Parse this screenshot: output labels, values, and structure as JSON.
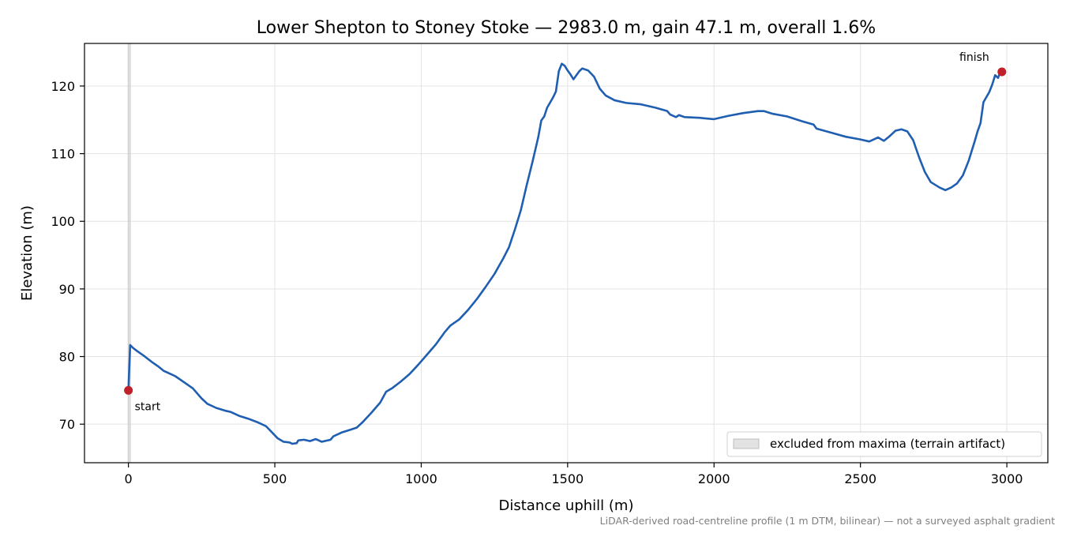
{
  "chart_data": {
    "type": "line",
    "title": "Lower Shepton to Stoney Stoke — 2983.0 m, gain 47.1 m, overall 1.6%",
    "xlabel": "Distance uphill (m)",
    "ylabel": "Elevation (m)",
    "xlim": [
      -150,
      3140
    ],
    "ylim": [
      64.3,
      126.3
    ],
    "xticks": [
      0,
      500,
      1000,
      1500,
      2000,
      2500,
      3000
    ],
    "yticks": [
      70,
      80,
      90,
      100,
      110,
      120
    ],
    "grid": true,
    "legend_position": "bottom-right",
    "legend": [
      {
        "label": "excluded from maxima (terrain artifact)",
        "style": "shaded-band"
      }
    ],
    "excluded_region": {
      "x_start": 0,
      "x_end": 6
    },
    "series": [
      {
        "color": "#1f5eb0",
        "points": [
          [
            0,
            75.0
          ],
          [
            6,
            81.7
          ],
          [
            15,
            81.3
          ],
          [
            30,
            80.8
          ],
          [
            50,
            80.2
          ],
          [
            80,
            79.2
          ],
          [
            100,
            78.6
          ],
          [
            120,
            77.9
          ],
          [
            140,
            77.5
          ],
          [
            160,
            77.1
          ],
          [
            190,
            76.2
          ],
          [
            220,
            75.3
          ],
          [
            250,
            73.8
          ],
          [
            270,
            73.0
          ],
          [
            300,
            72.4
          ],
          [
            330,
            72.0
          ],
          [
            350,
            71.8
          ],
          [
            380,
            71.2
          ],
          [
            410,
            70.8
          ],
          [
            440,
            70.3
          ],
          [
            470,
            69.7
          ],
          [
            490,
            68.8
          ],
          [
            510,
            67.9
          ],
          [
            530,
            67.4
          ],
          [
            550,
            67.3
          ],
          [
            560,
            67.1
          ],
          [
            575,
            67.2
          ],
          [
            580,
            67.6
          ],
          [
            600,
            67.7
          ],
          [
            620,
            67.5
          ],
          [
            640,
            67.8
          ],
          [
            660,
            67.4
          ],
          [
            680,
            67.6
          ],
          [
            690,
            67.7
          ],
          [
            700,
            68.2
          ],
          [
            730,
            68.8
          ],
          [
            760,
            69.2
          ],
          [
            780,
            69.5
          ],
          [
            800,
            70.3
          ],
          [
            830,
            71.7
          ],
          [
            860,
            73.2
          ],
          [
            880,
            74.8
          ],
          [
            900,
            75.3
          ],
          [
            930,
            76.3
          ],
          [
            960,
            77.4
          ],
          [
            990,
            78.8
          ],
          [
            1020,
            80.3
          ],
          [
            1050,
            81.8
          ],
          [
            1080,
            83.6
          ],
          [
            1100,
            84.6
          ],
          [
            1130,
            85.5
          ],
          [
            1160,
            86.9
          ],
          [
            1190,
            88.5
          ],
          [
            1220,
            90.3
          ],
          [
            1250,
            92.2
          ],
          [
            1280,
            94.5
          ],
          [
            1300,
            96.2
          ],
          [
            1320,
            98.8
          ],
          [
            1340,
            101.6
          ],
          [
            1360,
            105.3
          ],
          [
            1380,
            108.8
          ],
          [
            1400,
            112.5
          ],
          [
            1410,
            114.9
          ],
          [
            1420,
            115.5
          ],
          [
            1430,
            116.8
          ],
          [
            1450,
            118.3
          ],
          [
            1460,
            119.2
          ],
          [
            1470,
            122.2
          ],
          [
            1480,
            123.3
          ],
          [
            1490,
            123.0
          ],
          [
            1500,
            122.3
          ],
          [
            1510,
            121.7
          ],
          [
            1520,
            121.0
          ],
          [
            1540,
            122.2
          ],
          [
            1550,
            122.6
          ],
          [
            1570,
            122.3
          ],
          [
            1590,
            121.4
          ],
          [
            1610,
            119.6
          ],
          [
            1630,
            118.6
          ],
          [
            1660,
            117.9
          ],
          [
            1700,
            117.5
          ],
          [
            1750,
            117.3
          ],
          [
            1800,
            116.8
          ],
          [
            1840,
            116.3
          ],
          [
            1850,
            115.8
          ],
          [
            1870,
            115.4
          ],
          [
            1880,
            115.7
          ],
          [
            1900,
            115.4
          ],
          [
            1950,
            115.3
          ],
          [
            2000,
            115.1
          ],
          [
            2050,
            115.6
          ],
          [
            2100,
            116.0
          ],
          [
            2150,
            116.3
          ],
          [
            2170,
            116.3
          ],
          [
            2200,
            115.9
          ],
          [
            2250,
            115.5
          ],
          [
            2300,
            114.8
          ],
          [
            2340,
            114.3
          ],
          [
            2350,
            113.7
          ],
          [
            2400,
            113.1
          ],
          [
            2450,
            112.5
          ],
          [
            2500,
            112.1
          ],
          [
            2530,
            111.8
          ],
          [
            2550,
            112.2
          ],
          [
            2560,
            112.4
          ],
          [
            2580,
            111.9
          ],
          [
            2600,
            112.6
          ],
          [
            2620,
            113.4
          ],
          [
            2640,
            113.6
          ],
          [
            2660,
            113.3
          ],
          [
            2680,
            112.0
          ],
          [
            2700,
            109.5
          ],
          [
            2720,
            107.3
          ],
          [
            2740,
            105.8
          ],
          [
            2770,
            105.0
          ],
          [
            2790,
            104.6
          ],
          [
            2810,
            105.0
          ],
          [
            2830,
            105.6
          ],
          [
            2850,
            106.8
          ],
          [
            2870,
            109.0
          ],
          [
            2890,
            111.8
          ],
          [
            2900,
            113.3
          ],
          [
            2910,
            114.5
          ],
          [
            2920,
            117.6
          ],
          [
            2940,
            119.1
          ],
          [
            2950,
            120.2
          ],
          [
            2960,
            121.6
          ],
          [
            2970,
            121.2
          ],
          [
            2975,
            121.8
          ],
          [
            2983,
            122.1
          ]
        ]
      }
    ],
    "markers": [
      {
        "label": "start",
        "x": 0,
        "y": 75.0,
        "color": "#c0202a"
      },
      {
        "label": "finish",
        "x": 2983,
        "y": 122.1,
        "color": "#c0202a"
      }
    ],
    "footnote": "LiDAR-derived road-centreline profile (1 m DTM, bilinear) — not a surveyed asphalt gradient"
  }
}
